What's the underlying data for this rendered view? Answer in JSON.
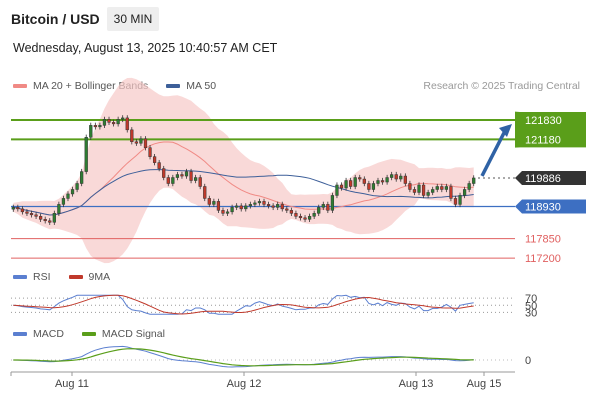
{
  "header": {
    "title": "Bitcoin / USD",
    "interval": "30 MIN",
    "datetime": "Wednesday, August 13, 2025 10:40:57 AM CET"
  },
  "legend": {
    "ma20": "MA 20 + Bollinger Bands",
    "ma50": "MA 50",
    "credit": "Research © 2025 Trading Central",
    "rsi": "RSI",
    "rsi_ma": "9MA",
    "macd": "MACD",
    "macd_signal": "MACD Signal"
  },
  "colors": {
    "bollinger": "#f6c9c7",
    "ma20": "#f08a85",
    "ma50": "#3d5f99",
    "resistance": "#5a9e1a",
    "pivot": "#3d6fc2",
    "support": "#e06060",
    "last": "#333333",
    "candle_up": "#2e7d32",
    "candle_down": "#c0392b",
    "arrow": "#2f62a5",
    "rsi": "#5b7fd0",
    "rsi_ma": "#c0392b",
    "macd": "#5b7fd0",
    "macd_signal": "#5a9e1a"
  },
  "chart_data": {
    "type": "candlestick",
    "x_ticks": [
      "Aug 11",
      "Aug 12",
      "Aug 13",
      "Aug 15"
    ],
    "price_range": [
      116800,
      122500
    ],
    "levels": {
      "resistance": [
        {
          "label": "121830",
          "value": 121830
        },
        {
          "label": "121180",
          "value": 121180
        }
      ],
      "pivot": {
        "label": "118930",
        "value": 118930
      },
      "support": [
        {
          "label": "117850",
          "value": 117850
        },
        {
          "label": "117200",
          "value": 117200
        }
      ],
      "last_price": {
        "label": "119886",
        "value": 119886
      }
    },
    "close": [
      118900,
      118850,
      118750,
      118700,
      118650,
      118600,
      118500,
      118450,
      118400,
      118700,
      119000,
      119200,
      119350,
      119500,
      119700,
      120100,
      121250,
      121650,
      121600,
      121650,
      121850,
      121750,
      121700,
      121850,
      121900,
      121500,
      121100,
      121050,
      121200,
      120900,
      120600,
      120400,
      120200,
      119900,
      119700,
      119900,
      120000,
      119950,
      120100,
      119800,
      119900,
      119600,
      119200,
      119000,
      119100,
      118800,
      118700,
      118750,
      118900,
      118950,
      118850,
      118950,
      119000,
      119050,
      119100,
      119000,
      118950,
      118900,
      119000,
      118850,
      118800,
      118700,
      118600,
      118550,
      118500,
      118600,
      118700,
      118900,
      119000,
      118800,
      119300,
      119650,
      119550,
      119800,
      119600,
      119900,
      119850,
      119700,
      119500,
      119700,
      119800,
      119750,
      119900,
      120000,
      119850,
      119950,
      119700,
      119500,
      119400,
      119650,
      119300,
      119400,
      119500,
      119600,
      119500,
      119600,
      119200,
      119000,
      119300,
      119500,
      119700,
      119886
    ],
    "rsi_levels": [
      70,
      50,
      30
    ],
    "macd_zero_label": "0"
  }
}
